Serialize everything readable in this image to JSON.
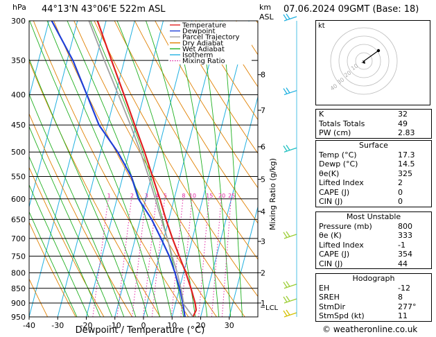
{
  "header": {
    "unit_hpa": "hPa",
    "location": "44°13'N 43°06'E 522m ASL",
    "unit_km": "km",
    "unit_asl": "ASL",
    "datetime": "07.06.2024 09GMT (Base: 18)"
  },
  "chart_data": {
    "type": "line",
    "title": "44°13'N 43°06'E 522m ASL",
    "xlabel": "Dewpoint / Temperature (°C)",
    "ylabel": "hPa",
    "xlim": [
      -40,
      40
    ],
    "ylim": [
      950,
      300
    ],
    "y_scale": "log",
    "x_ticks": [
      -40,
      -30,
      -20,
      -10,
      0,
      10,
      20,
      30
    ],
    "x_tick_labels": [
      "-40",
      "-30",
      "-20",
      "-10",
      "0",
      "10",
      "20",
      "30"
    ],
    "pressure_levels": [
      300,
      350,
      400,
      450,
      500,
      550,
      600,
      650,
      700,
      750,
      800,
      850,
      900,
      950
    ],
    "pressure_labels": [
      "300",
      "350",
      "400",
      "450",
      "500",
      "550",
      "600",
      "650",
      "700",
      "750",
      "800",
      "850",
      "900",
      "950"
    ],
    "km_ticks": [
      {
        "p": 370,
        "label": "8"
      },
      {
        "p": 425,
        "label": "7"
      },
      {
        "p": 490,
        "label": "6"
      },
      {
        "p": 556,
        "label": "5"
      },
      {
        "p": 630,
        "label": "4"
      },
      {
        "p": 708,
        "label": "3"
      },
      {
        "p": 800,
        "label": "2"
      },
      {
        "p": 900,
        "label": "1"
      }
    ],
    "lcl_label": "LCL",
    "lcl_p": 905,
    "mixing_ratio_label": "Mixing Ratio (g/kg)",
    "mixing_ratio_values": [
      1,
      2,
      3,
      4,
      5,
      8,
      10,
      15,
      20,
      25
    ],
    "mixing_ratio_labels": [
      "1",
      "2",
      "3",
      "4",
      "5",
      "8",
      "10",
      "15",
      "20",
      "25"
    ],
    "legend": [
      "Temperature",
      "Dewpoint",
      "Parcel Trajectory",
      "Dry Adiabat",
      "Wet Adiabat",
      "Isotherm",
      "Mixing Ratio"
    ],
    "colors": {
      "temperature": "#e02020",
      "dewpoint": "#1f3fd8",
      "parcel": "#a0a0a0",
      "dry_adiabat": "#e08000",
      "wet_adiabat": "#20b020",
      "isotherm": "#20b0e0",
      "mixing_ratio": "#e020a0"
    },
    "series": [
      {
        "name": "Temperature",
        "p": [
          950,
          925,
          900,
          850,
          800,
          750,
          700,
          650,
          600,
          550,
          500,
          450,
          400,
          350,
          300
        ],
        "values": [
          17.3,
          17.8,
          16.8,
          14.0,
          10.8,
          7.0,
          3.0,
          -1.0,
          -5.0,
          -9.6,
          -14.6,
          -20.5,
          -27.0,
          -34.5,
          -43.0
        ]
      },
      {
        "name": "Dewpoint",
        "p": [
          950,
          925,
          900,
          850,
          800,
          750,
          700,
          650,
          600,
          550,
          500,
          450,
          400,
          350,
          300
        ],
        "values": [
          14.5,
          13.5,
          12.5,
          10.0,
          7.0,
          3.5,
          -1.0,
          -6.0,
          -12.5,
          -17.0,
          -24.0,
          -33.0,
          -40.0,
          -48.0,
          -59.0
        ]
      },
      {
        "name": "Parcel Trajectory",
        "p": [
          950,
          905,
          850,
          800,
          750,
          700,
          650,
          600,
          550,
          500,
          450,
          400,
          350,
          300
        ],
        "values": [
          17.3,
          13.0,
          10.5,
          7.8,
          4.5,
          1.2,
          -2.6,
          -6.6,
          -11.0,
          -16.0,
          -22.0,
          -29.0,
          -37.0,
          -46.0
        ]
      }
    ],
    "wind_barbs": [
      {
        "p": 300,
        "label": "300"
      },
      {
        "p": 400,
        "label": "400"
      },
      {
        "p": 500,
        "label": "500"
      },
      {
        "p": 700,
        "label": "700"
      },
      {
        "p": 850,
        "label": "850"
      },
      {
        "p": 900,
        "label": "900"
      },
      {
        "p": 950,
        "label": "950"
      }
    ]
  },
  "hodograph": {
    "label": "kt",
    "ring_labels": [
      "10",
      "20",
      "30",
      "40"
    ]
  },
  "indices": {
    "rows": [
      {
        "label": "K",
        "value": "32"
      },
      {
        "label": "Totals Totals",
        "value": "49"
      },
      {
        "label": "PW (cm)",
        "value": "2.83"
      }
    ]
  },
  "surface": {
    "title": "Surface",
    "rows": [
      {
        "label": "Temp (°C)",
        "value": "17.3"
      },
      {
        "label": "Dewp (°C)",
        "value": "14.5"
      },
      {
        "label": "θe(K)",
        "value": "325"
      },
      {
        "label": "Lifted Index",
        "value": "2"
      },
      {
        "label": "CAPE (J)",
        "value": "0"
      },
      {
        "label": "CIN (J)",
        "value": "0"
      }
    ]
  },
  "most_unstable": {
    "title": "Most Unstable",
    "rows": [
      {
        "label": "Pressure (mb)",
        "value": "800"
      },
      {
        "label": "θe (K)",
        "value": "333"
      },
      {
        "label": "Lifted Index",
        "value": "-1"
      },
      {
        "label": "CAPE (J)",
        "value": "354"
      },
      {
        "label": "CIN (J)",
        "value": "44"
      }
    ]
  },
  "hodograph_table": {
    "title": "Hodograph",
    "rows": [
      {
        "label": "EH",
        "value": "-12"
      },
      {
        "label": "SREH",
        "value": "8"
      },
      {
        "label": "StmDir",
        "value": "277°"
      },
      {
        "label": "StmSpd (kt)",
        "value": "11"
      }
    ]
  },
  "footer": {
    "copyright": "© weatheronline.co.uk"
  }
}
